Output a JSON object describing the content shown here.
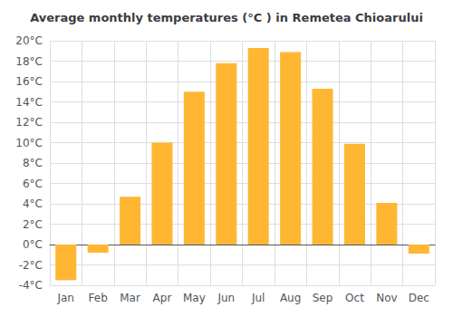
{
  "chart_data": {
    "type": "bar",
    "title": "Average monthly temperatures (°C ) in Remetea Chioarului",
    "categories": [
      "Jan",
      "Feb",
      "Mar",
      "Apr",
      "May",
      "Jun",
      "Jul",
      "Aug",
      "Sep",
      "Oct",
      "Nov",
      "Dec"
    ],
    "values": [
      -3.5,
      -0.8,
      4.7,
      10.0,
      15.0,
      17.8,
      19.3,
      18.9,
      15.3,
      9.9,
      4.1,
      -0.9
    ],
    "color": "#FFB733",
    "ylim": [
      -4,
      20
    ],
    "yticks": [
      {
        "value": -4,
        "label": "-4°C"
      },
      {
        "value": -2,
        "label": "-2°C"
      },
      {
        "value": 0,
        "label": "0°C"
      },
      {
        "value": 2,
        "label": "2°C"
      },
      {
        "value": 4,
        "label": "4°C"
      },
      {
        "value": 6,
        "label": "6°C"
      },
      {
        "value": 8,
        "label": "8°C"
      },
      {
        "value": 10,
        "label": "10°C"
      },
      {
        "value": 12,
        "label": "12°C"
      },
      {
        "value": 14,
        "label": "14°C"
      },
      {
        "value": 16,
        "label": "16°C"
      },
      {
        "value": 18,
        "label": "18°C"
      },
      {
        "value": 20,
        "label": "20°C"
      }
    ],
    "grid": true
  }
}
